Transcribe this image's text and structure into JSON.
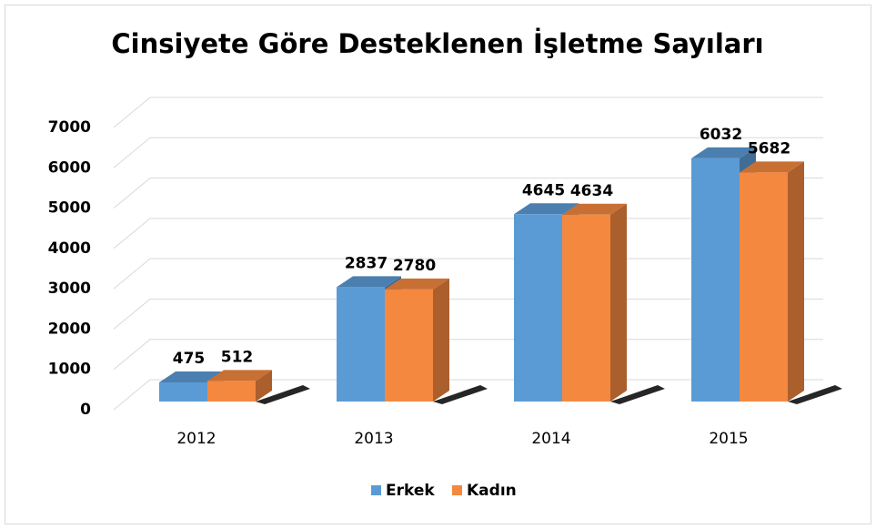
{
  "chart_data": {
    "type": "bar3d",
    "title": "Cinsiyete Göre Desteklenen İşletme Sayıları",
    "categories": [
      "2012",
      "2013",
      "2014",
      "2015"
    ],
    "series": [
      {
        "name": "Erkek",
        "color": "#5b9bd5",
        "values": [
          475,
          2837,
          4645,
          6032
        ]
      },
      {
        "name": "Kadın",
        "color": "#f4883f",
        "values": [
          512,
          2780,
          4634,
          5682
        ]
      }
    ],
    "ylim": [
      0,
      7000
    ],
    "yticks": [
      0,
      1000,
      2000,
      3000,
      4000,
      5000,
      6000,
      7000
    ],
    "grid": true,
    "legend": "bottom"
  }
}
